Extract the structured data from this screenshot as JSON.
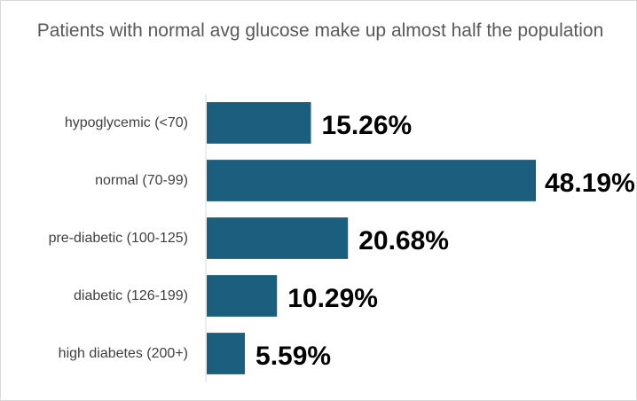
{
  "chart_data": {
    "type": "bar",
    "orientation": "horizontal",
    "title": "Patients with normal avg glucose make up almost half the population",
    "categories": [
      "hypoglycemic (<70)",
      "normal (70-99)",
      "pre-diabetic (100-125)",
      "diabetic (126-199)",
      "high diabetes (200+)"
    ],
    "values": [
      15.26,
      48.19,
      20.68,
      10.29,
      5.59
    ],
    "data_labels": [
      "15.26%",
      "48.19%",
      "20.68%",
      "10.29%",
      "5.59%"
    ],
    "xlim": [
      0,
      48.19
    ],
    "bar_color": "#1B5E7E",
    "axis_color": "#d9d9d9",
    "grid": false,
    "legend": "none"
  }
}
